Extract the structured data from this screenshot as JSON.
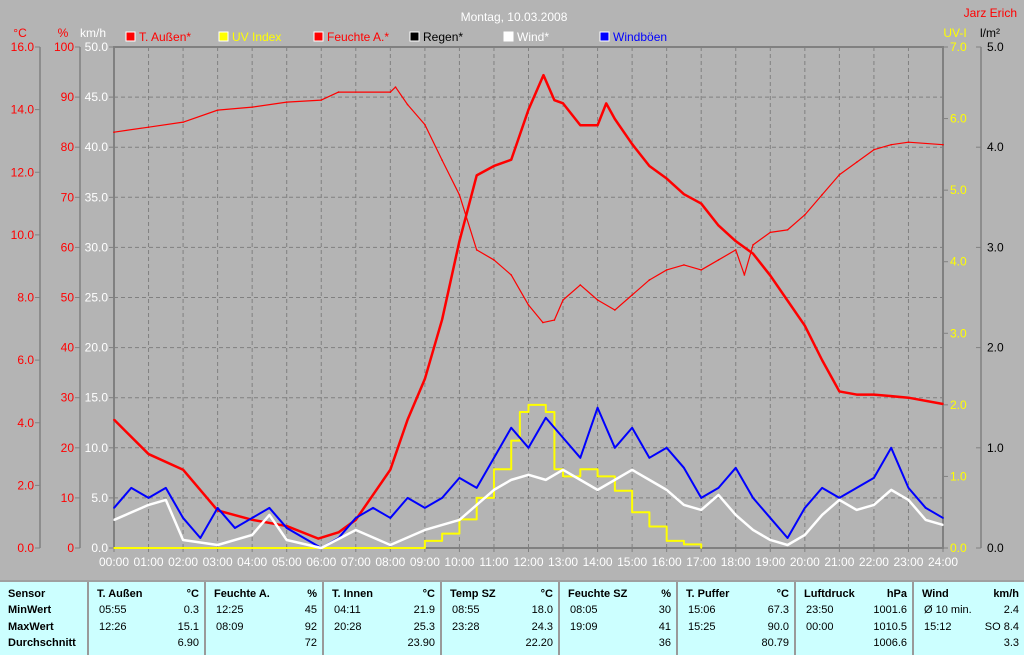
{
  "title": "Montag, 10.03.2008",
  "author": "Jarz Erich",
  "axes": {
    "temp": {
      "label": "°C",
      "range": [
        0,
        16
      ],
      "step": 2,
      "color": "#ff0000"
    },
    "humidity": {
      "label": "%",
      "range": [
        0,
        100
      ],
      "step": 10,
      "color": "#ff0000"
    },
    "wind": {
      "label": "km/h",
      "range": [
        0,
        50
      ],
      "step": 5,
      "color": "#ffffff"
    },
    "uv": {
      "label": "UV-I",
      "range": [
        0,
        7
      ],
      "step": 1,
      "color": "#ffff00"
    },
    "rain": {
      "label": "l/m²",
      "range": [
        0,
        5
      ],
      "step": 1,
      "color": "#000000"
    }
  },
  "legend": [
    {
      "label": "T. Außen*",
      "color": "#ff0000"
    },
    {
      "label": "UV Index",
      "color": "#ffff00"
    },
    {
      "label": "Feuchte A.*",
      "color": "#ff0000"
    },
    {
      "label": "Regen*",
      "color": "#000000"
    },
    {
      "label": "Wind*",
      "color": "#ffffff"
    },
    {
      "label": "Windböen",
      "color": "#0000ff"
    }
  ],
  "chart_data": {
    "type": "line",
    "title": "Montag, 10.03.2008",
    "x_ticks": [
      "00:00",
      "01:00",
      "02:00",
      "03:00",
      "04:00",
      "05:00",
      "06:00",
      "07:00",
      "08:00",
      "09:00",
      "10:00",
      "11:00",
      "12:00",
      "13:00",
      "14:00",
      "15:00",
      "16:00",
      "17:00",
      "18:00",
      "19:00",
      "20:00",
      "21:00",
      "22:00",
      "23:00",
      "24:00"
    ],
    "xlim": [
      "00:00",
      "24:00"
    ],
    "grid": true,
    "legend_position": "top",
    "series": [
      {
        "name": "T. Außen*",
        "axis": "temp",
        "color": "#ff0000",
        "width": 2.5,
        "points": [
          [
            "00:00",
            4.1
          ],
          [
            "01:00",
            3.0
          ],
          [
            "02:00",
            2.5
          ],
          [
            "03:00",
            1.2
          ],
          [
            "04:00",
            0.9
          ],
          [
            "05:00",
            0.7
          ],
          [
            "05:55",
            0.3
          ],
          [
            "06:30",
            0.5
          ],
          [
            "07:00",
            0.9
          ],
          [
            "08:00",
            2.5
          ],
          [
            "08:30",
            4.1
          ],
          [
            "09:00",
            5.4
          ],
          [
            "09:30",
            7.3
          ],
          [
            "10:00",
            9.8
          ],
          [
            "10:30",
            11.9
          ],
          [
            "11:00",
            12.2
          ],
          [
            "11:30",
            12.4
          ],
          [
            "12:00",
            14.0
          ],
          [
            "12:26",
            15.1
          ],
          [
            "12:45",
            14.3
          ],
          [
            "13:00",
            14.2
          ],
          [
            "13:30",
            13.5
          ],
          [
            "14:00",
            13.5
          ],
          [
            "14:15",
            14.2
          ],
          [
            "14:30",
            13.7
          ],
          [
            "15:00",
            12.9
          ],
          [
            "15:30",
            12.2
          ],
          [
            "16:00",
            11.8
          ],
          [
            "16:30",
            11.3
          ],
          [
            "17:00",
            11.0
          ],
          [
            "17:30",
            10.3
          ],
          [
            "18:00",
            9.8
          ],
          [
            "18:30",
            9.4
          ],
          [
            "19:00",
            8.7
          ],
          [
            "19:30",
            7.9
          ],
          [
            "20:00",
            7.1
          ],
          [
            "20:30",
            6.0
          ],
          [
            "21:00",
            5.0
          ],
          [
            "21:30",
            4.9
          ],
          [
            "22:00",
            4.9
          ],
          [
            "23:00",
            4.8
          ],
          [
            "24:00",
            4.6
          ]
        ]
      },
      {
        "name": "Feuchte A.*",
        "axis": "humidity",
        "color": "#ff0000",
        "width": 1.2,
        "points": [
          [
            "00:00",
            83
          ],
          [
            "01:00",
            84
          ],
          [
            "02:00",
            85
          ],
          [
            "03:00",
            87.4
          ],
          [
            "04:00",
            88
          ],
          [
            "05:00",
            89
          ],
          [
            "06:00",
            89.4
          ],
          [
            "06:30",
            91
          ],
          [
            "08:00",
            91
          ],
          [
            "08:09",
            92
          ],
          [
            "08:30",
            88.5
          ],
          [
            "09:00",
            84.5
          ],
          [
            "09:30",
            77.4
          ],
          [
            "10:00",
            70.5
          ],
          [
            "10:30",
            59.5
          ],
          [
            "11:00",
            57.5
          ],
          [
            "11:30",
            54.5
          ],
          [
            "12:00",
            48.5
          ],
          [
            "12:25",
            45
          ],
          [
            "12:45",
            45.5
          ],
          [
            "13:00",
            49.5
          ],
          [
            "13:30",
            52.5
          ],
          [
            "14:00",
            49.5
          ],
          [
            "14:30",
            47.5
          ],
          [
            "15:00",
            50.5
          ],
          [
            "15:30",
            53.5
          ],
          [
            "16:00",
            55.5
          ],
          [
            "16:30",
            56.5
          ],
          [
            "17:00",
            55.5
          ],
          [
            "17:30",
            57.5
          ],
          [
            "18:00",
            59.5
          ],
          [
            "18:15",
            54.5
          ],
          [
            "18:30",
            60.5
          ],
          [
            "19:00",
            63
          ],
          [
            "19:30",
            63.5
          ],
          [
            "20:00",
            66.5
          ],
          [
            "20:30",
            70.5
          ],
          [
            "21:00",
            74.5
          ],
          [
            "21:30",
            77
          ],
          [
            "22:00",
            79.5
          ],
          [
            "22:30",
            80.5
          ],
          [
            "23:00",
            81
          ],
          [
            "24:00",
            80.5
          ]
        ]
      },
      {
        "name": "UV Index",
        "axis": "uv",
        "color": "#ffff00",
        "width": 2,
        "step": true,
        "points": [
          [
            "00:00",
            0
          ],
          [
            "09:00",
            0.1
          ],
          [
            "09:30",
            0.2
          ],
          [
            "10:00",
            0.4
          ],
          [
            "10:30",
            0.7
          ],
          [
            "11:00",
            1.1
          ],
          [
            "11:30",
            1.5
          ],
          [
            "11:45",
            1.9
          ],
          [
            "12:00",
            2.0
          ],
          [
            "12:30",
            1.9
          ],
          [
            "12:45",
            1.1
          ],
          [
            "13:00",
            1.0
          ],
          [
            "13:30",
            1.1
          ],
          [
            "14:00",
            1.0
          ],
          [
            "14:30",
            0.8
          ],
          [
            "15:00",
            0.5
          ],
          [
            "15:30",
            0.3
          ],
          [
            "16:00",
            0.1
          ],
          [
            "16:30",
            0.05
          ],
          [
            "17:00",
            0
          ]
        ]
      },
      {
        "name": "Windböen",
        "axis": "wind",
        "color": "#0000ff",
        "width": 2,
        "points": [
          [
            "00:00",
            4
          ],
          [
            "00:30",
            6
          ],
          [
            "01:00",
            5
          ],
          [
            "01:30",
            6
          ],
          [
            "02:00",
            3
          ],
          [
            "02:30",
            1
          ],
          [
            "03:00",
            4
          ],
          [
            "03:30",
            2
          ],
          [
            "04:00",
            3
          ],
          [
            "04:30",
            4
          ],
          [
            "05:00",
            2
          ],
          [
            "05:30",
            1
          ],
          [
            "06:00",
            0
          ],
          [
            "06:30",
            1
          ],
          [
            "07:00",
            3
          ],
          [
            "07:30",
            4
          ],
          [
            "08:00",
            3
          ],
          [
            "08:30",
            5
          ],
          [
            "09:00",
            4
          ],
          [
            "09:30",
            5
          ],
          [
            "10:00",
            7
          ],
          [
            "10:30",
            6
          ],
          [
            "11:00",
            9
          ],
          [
            "11:30",
            12
          ],
          [
            "12:00",
            10
          ],
          [
            "12:30",
            13
          ],
          [
            "13:00",
            11
          ],
          [
            "13:30",
            9
          ],
          [
            "14:00",
            14
          ],
          [
            "14:30",
            10
          ],
          [
            "15:00",
            12
          ],
          [
            "15:30",
            9
          ],
          [
            "16:00",
            10
          ],
          [
            "16:30",
            8
          ],
          [
            "17:00",
            5
          ],
          [
            "17:30",
            6
          ],
          [
            "18:00",
            8
          ],
          [
            "18:30",
            5
          ],
          [
            "19:00",
            3
          ],
          [
            "19:30",
            1
          ],
          [
            "20:00",
            4
          ],
          [
            "20:30",
            6
          ],
          [
            "21:00",
            5
          ],
          [
            "21:30",
            6
          ],
          [
            "22:00",
            7
          ],
          [
            "22:30",
            10
          ],
          [
            "23:00",
            6
          ],
          [
            "23:30",
            4
          ],
          [
            "24:00",
            3
          ]
        ]
      },
      {
        "name": "Wind*",
        "axis": "wind",
        "color": "#ffffff",
        "width": 2.5,
        "points": [
          [
            "00:00",
            2.8
          ],
          [
            "01:00",
            4.3
          ],
          [
            "01:30",
            4.8
          ],
          [
            "02:00",
            0.8
          ],
          [
            "03:00",
            0.3
          ],
          [
            "04:00",
            1.3
          ],
          [
            "04:30",
            3.3
          ],
          [
            "05:00",
            0.8
          ],
          [
            "06:00",
            0
          ],
          [
            "07:00",
            1.8
          ],
          [
            "08:00",
            0.3
          ],
          [
            "09:00",
            1.8
          ],
          [
            "10:00",
            2.8
          ],
          [
            "11:00",
            5.8
          ],
          [
            "11:30",
            6.8
          ],
          [
            "12:00",
            7.3
          ],
          [
            "12:30",
            6.8
          ],
          [
            "13:00",
            7.8
          ],
          [
            "13:30",
            6.8
          ],
          [
            "14:00",
            5.8
          ],
          [
            "14:30",
            6.8
          ],
          [
            "15:00",
            7.8
          ],
          [
            "15:30",
            6.8
          ],
          [
            "16:00",
            5.8
          ],
          [
            "16:30",
            4.3
          ],
          [
            "17:00",
            3.8
          ],
          [
            "17:30",
            5.3
          ],
          [
            "18:00",
            3.3
          ],
          [
            "18:30",
            1.8
          ],
          [
            "19:00",
            0.8
          ],
          [
            "19:30",
            0.3
          ],
          [
            "20:00",
            1.3
          ],
          [
            "20:30",
            3.3
          ],
          [
            "21:00",
            4.8
          ],
          [
            "21:30",
            3.8
          ],
          [
            "22:00",
            4.3
          ],
          [
            "22:30",
            5.8
          ],
          [
            "23:00",
            4.8
          ],
          [
            "23:30",
            2.8
          ],
          [
            "24:00",
            2.3
          ]
        ]
      }
    ]
  },
  "table": {
    "row_labels": [
      "Sensor",
      "MinWert",
      "MaxWert",
      "Durchschnitt"
    ],
    "columns": [
      {
        "header": "T. Außen",
        "unit": "°C",
        "min_time": "05:55",
        "min": "0.3",
        "max_time": "12:26",
        "max": "15.1",
        "avg": "6.90"
      },
      {
        "header": "Feuchte A.",
        "unit": "%",
        "min_time": "12:25",
        "min": "45",
        "max_time": "08:09",
        "max": "92",
        "avg": "72"
      },
      {
        "header": "T. Innen",
        "unit": "°C",
        "min_time": "04:11",
        "min": "21.9",
        "max_time": "20:28",
        "max": "25.3",
        "avg": "23.90"
      },
      {
        "header": "Temp SZ",
        "unit": "°C",
        "min_time": "08:55",
        "min": "18.0",
        "max_time": "23:28",
        "max": "24.3",
        "avg": "22.20"
      },
      {
        "header": "Feuchte SZ",
        "unit": "%",
        "min_time": "08:05",
        "min": "30",
        "max_time": "19:09",
        "max": "41",
        "avg": "36"
      },
      {
        "header": "T. Puffer",
        "unit": "°C",
        "min_time": "15:06",
        "min": "67.3",
        "max_time": "15:25",
        "max": "90.0",
        "avg": "80.79"
      },
      {
        "header": "Luftdruck",
        "unit": "hPa",
        "min_time": "23:50",
        "min": "1001.6",
        "max_time": "00:00",
        "max": "1010.5",
        "avg": "1006.6"
      },
      {
        "header": "Wind",
        "unit": "km/h",
        "min_time": "Ø 10 min.",
        "min": "2.4",
        "max_time": "15:12",
        "max": "SO 8.4",
        "avg": "3.3"
      }
    ]
  }
}
